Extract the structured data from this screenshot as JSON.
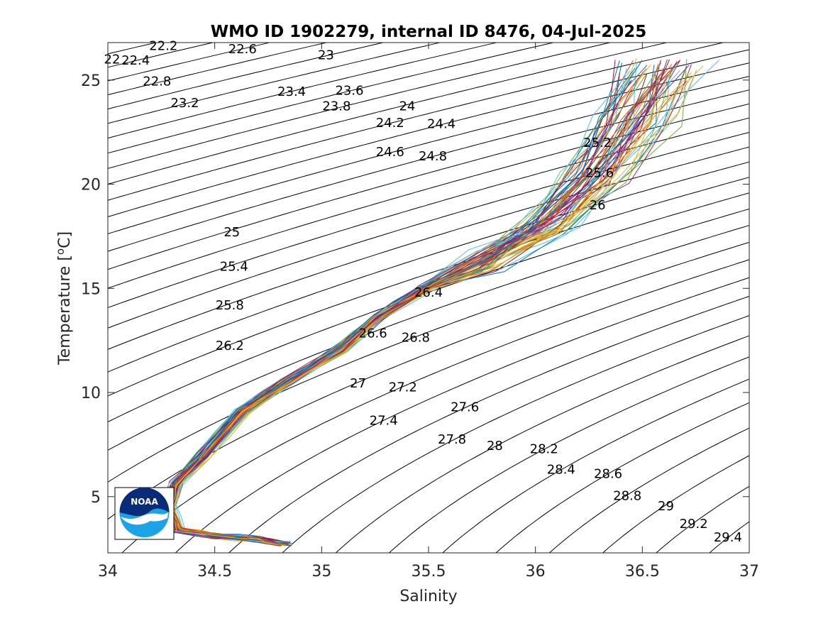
{
  "chart_data": {
    "type": "line",
    "title": "WMO ID 1902279, internal ID 8476, 04-Jul-2025",
    "xlabel": "Salinity",
    "ylabel_main": "Temperature [",
    "ylabel_sup": "o",
    "ylabel_end": "C]",
    "xlim": [
      34,
      37
    ],
    "ylim": [
      2.3,
      26.8
    ],
    "x_ticks": [
      34,
      34.5,
      35,
      35.5,
      36,
      36.5,
      37
    ],
    "x_tick_labels": [
      "34",
      "34.5",
      "35",
      "35.5",
      "36",
      "36.5",
      "37"
    ],
    "y_ticks": [
      5,
      10,
      15,
      20,
      25
    ],
    "y_tick_labels": [
      "5",
      "10",
      "15",
      "20",
      "25"
    ],
    "grid": false,
    "density_contour_labels": [
      {
        "label": "22",
        "s": 34.02,
        "t": 26.0
      },
      {
        "label": "22.2",
        "s": 34.26,
        "t": 26.65
      },
      {
        "label": "22.4",
        "s": 34.13,
        "t": 25.95
      },
      {
        "label": "22.6",
        "s": 34.63,
        "t": 26.5
      },
      {
        "label": "22.8",
        "s": 34.23,
        "t": 24.95
      },
      {
        "label": "23",
        "s": 35.02,
        "t": 26.2
      },
      {
        "label": "23.2",
        "s": 34.36,
        "t": 23.9
      },
      {
        "label": "23.4",
        "s": 34.86,
        "t": 24.45
      },
      {
        "label": "23.6",
        "s": 35.13,
        "t": 24.5
      },
      {
        "label": "23.8",
        "s": 35.07,
        "t": 23.75
      },
      {
        "label": "24",
        "s": 35.4,
        "t": 23.75
      },
      {
        "label": "24.2",
        "s": 35.32,
        "t": 22.95
      },
      {
        "label": "24.4",
        "s": 35.56,
        "t": 22.9
      },
      {
        "label": "24.6",
        "s": 35.32,
        "t": 21.55
      },
      {
        "label": "24.8",
        "s": 35.52,
        "t": 21.35
      },
      {
        "label": "25",
        "s": 34.58,
        "t": 17.7
      },
      {
        "label": "25.2",
        "s": 36.29,
        "t": 22.0
      },
      {
        "label": "25.4",
        "s": 34.59,
        "t": 16.05
      },
      {
        "label": "25.6",
        "s": 36.3,
        "t": 20.55
      },
      {
        "label": "25.8",
        "s": 34.57,
        "t": 14.2
      },
      {
        "label": "26",
        "s": 36.29,
        "t": 19.0
      },
      {
        "label": "26.2",
        "s": 34.57,
        "t": 12.25
      },
      {
        "label": "26.4",
        "s": 35.5,
        "t": 14.8
      },
      {
        "label": "26.6",
        "s": 35.24,
        "t": 12.85
      },
      {
        "label": "26.8",
        "s": 35.44,
        "t": 12.65
      },
      {
        "label": "27",
        "s": 35.17,
        "t": 10.45
      },
      {
        "label": "27.2",
        "s": 35.38,
        "t": 10.25
      },
      {
        "label": "27.4",
        "s": 35.29,
        "t": 8.65
      },
      {
        "label": "27.6",
        "s": 35.67,
        "t": 9.3
      },
      {
        "label": "27.8",
        "s": 35.61,
        "t": 7.75
      },
      {
        "label": "28",
        "s": 35.81,
        "t": 7.45
      },
      {
        "label": "28.2",
        "s": 36.04,
        "t": 7.3
      },
      {
        "label": "28.4",
        "s": 36.12,
        "t": 6.3
      },
      {
        "label": "28.6",
        "s": 36.34,
        "t": 6.1
      },
      {
        "label": "28.8",
        "s": 36.43,
        "t": 5.05
      },
      {
        "label": "29",
        "s": 36.61,
        "t": 4.55
      },
      {
        "label": "29.2",
        "s": 36.74,
        "t": 3.7
      },
      {
        "label": "29.4",
        "s": 36.9,
        "t": 3.05
      }
    ],
    "profile_envelope": {
      "description_free": true,
      "spine": [
        {
          "s": 34.82,
          "t": 2.75
        },
        {
          "s": 34.7,
          "t": 2.95
        },
        {
          "s": 34.5,
          "t": 3.1
        },
        {
          "s": 34.33,
          "t": 3.4
        },
        {
          "s": 34.29,
          "t": 4.5
        },
        {
          "s": 34.32,
          "t": 5.6
        },
        {
          "s": 34.45,
          "t": 7.0
        },
        {
          "s": 34.63,
          "t": 9.1
        },
        {
          "s": 34.85,
          "t": 10.6
        },
        {
          "s": 35.08,
          "t": 12.0
        },
        {
          "s": 35.26,
          "t": 13.6
        },
        {
          "s": 35.48,
          "t": 15.0
        },
        {
          "s": 35.78,
          "t": 16.4
        },
        {
          "s": 36.08,
          "t": 18.2
        },
        {
          "s": 36.3,
          "t": 20.6
        },
        {
          "s": 36.48,
          "t": 23.2
        },
        {
          "s": 36.6,
          "t": 25.5
        }
      ],
      "profile_count": 60
    },
    "series_colors": [
      "#0072BD",
      "#D95319",
      "#EDB120",
      "#7E2F8E",
      "#77AC30",
      "#4DBEEE",
      "#A2142F"
    ]
  },
  "logo": {
    "text": "NOAA",
    "colors": {
      "navy": "#0a2b7a",
      "blue": "#1aa3e6",
      "white": "#ffffff"
    }
  }
}
